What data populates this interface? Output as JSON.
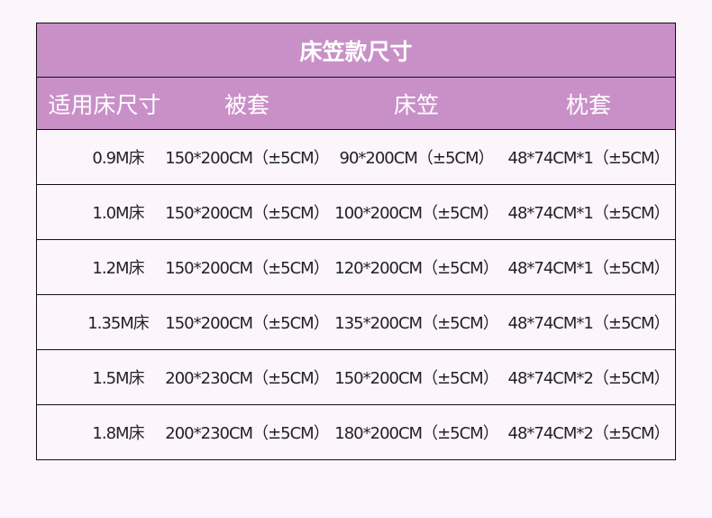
{
  "title": "床笠款尺寸",
  "headers": [
    "适用床尺寸",
    "被套",
    "床笠",
    "枕套"
  ],
  "rows": [
    [
      "0.9M床",
      "150*200CM（±5CM）",
      "90*200CM（±5CM）",
      "48*74CM*1（±5CM）"
    ],
    [
      "1.0M床",
      "150*200CM（±5CM）",
      "100*200CM（±5CM）",
      "48*74CM*1（±5CM）"
    ],
    [
      "1.2M床",
      "150*200CM（±5CM）",
      "120*200CM（±5CM）",
      "48*74CM*1（±5CM）"
    ],
    [
      "1.35M床",
      "150*200CM（±5CM）",
      "135*200CM（±5CM）",
      "48*74CM*1（±5CM）"
    ],
    [
      "1.5M床",
      "200*230CM（±5CM）",
      "150*200CM（±5CM）",
      "48*74CM*2（±5CM）"
    ],
    [
      "1.8M床",
      "200*230CM（±5CM）",
      "180*200CM（±5CM）",
      "48*74CM*2（±5CM）"
    ]
  ],
  "colors": {
    "header": "#c990c8",
    "background": "#fcf5fc",
    "text": "#222222"
  }
}
